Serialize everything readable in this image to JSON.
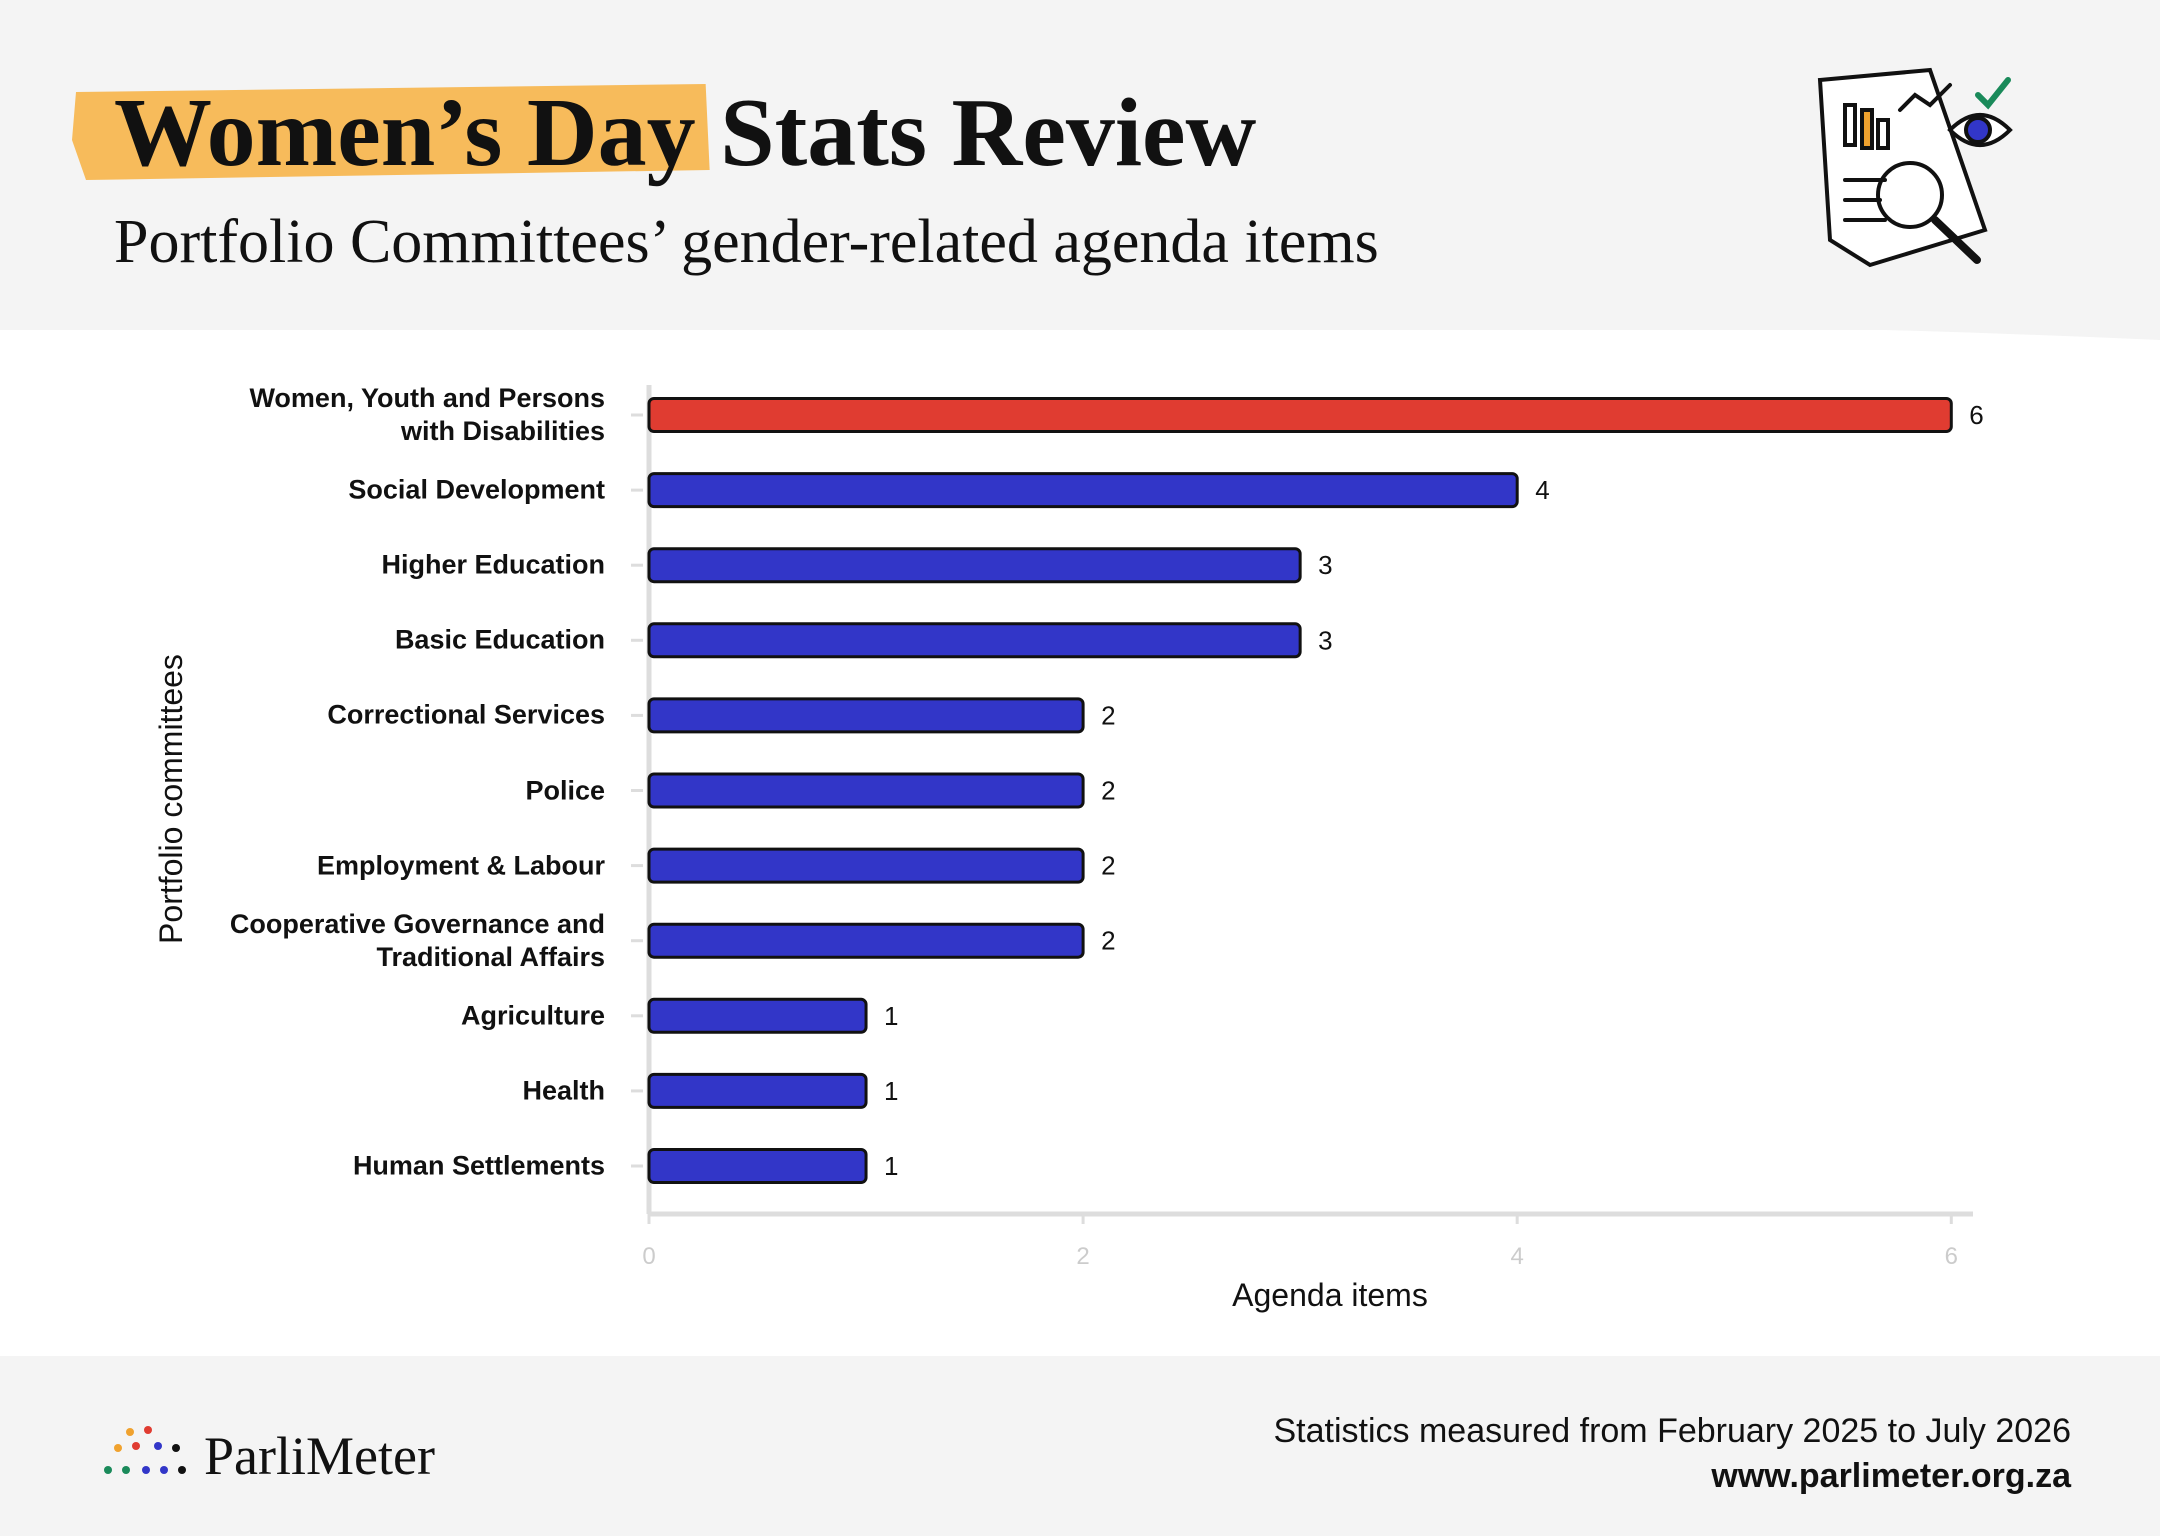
{
  "chart_data": {
    "type": "barh",
    "title": "Women’s Day Stats Review",
    "subtitle": "Portfolio Committees’ gender-related agenda items",
    "x_label": "Agenda items",
    "y_label": "Portfolio committees",
    "categories": [
      "Women, Youth and Persons with Disabilities",
      "Social Development",
      "Higher Education",
      "Basic Education",
      "Correctional Services",
      "Police",
      "Employment & Labour",
      "Cooperative Governance and Traditional Affairs",
      "Agriculture",
      "Health",
      "Human Settlements"
    ],
    "values": [
      6,
      4,
      3,
      3,
      2,
      2,
      2,
      2,
      1,
      1,
      1
    ],
    "colors": [
      "#e03c31",
      "#3236c8",
      "#3236c8",
      "#3236c8",
      "#3236c8",
      "#3236c8",
      "#3236c8",
      "#3236c8",
      "#3236c8",
      "#3236c8",
      "#3236c8"
    ],
    "xlim": [
      0,
      6.1
    ],
    "xticks": [
      0,
      2,
      4,
      6
    ]
  },
  "footer": {
    "logo": "ParliMeter",
    "note": "Statistics measured from February 2025 to July 2026",
    "url": "www.parlimeter.org.za"
  }
}
